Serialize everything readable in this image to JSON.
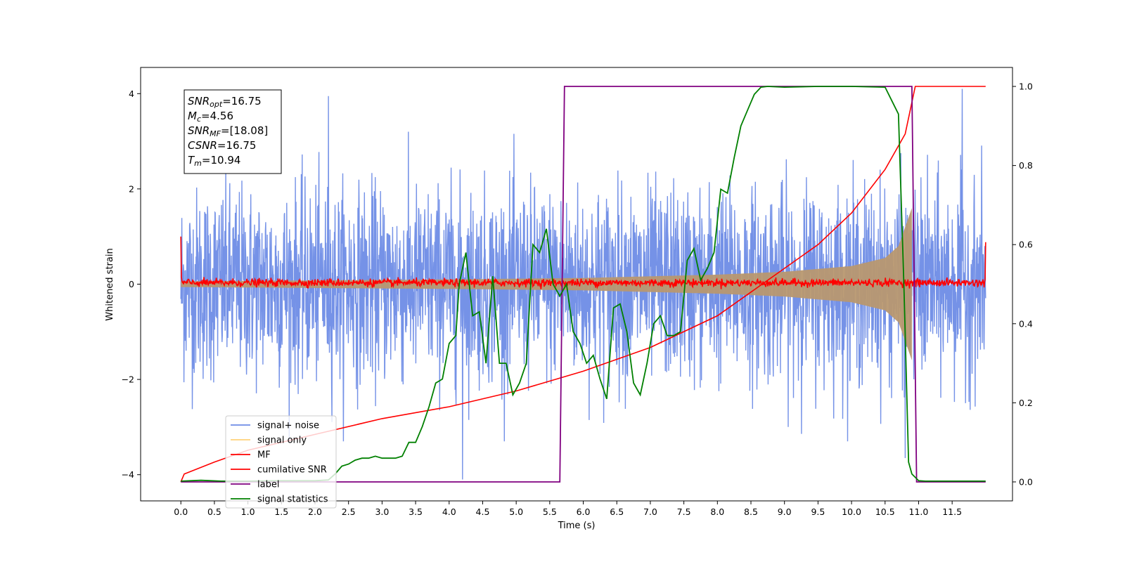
{
  "chart_data": {
    "type": "line",
    "xlabel": "Time (s)",
    "ylabel": "Whitened strain",
    "xlim": [
      -0.6,
      12.4
    ],
    "ylim": [
      -4.55,
      4.55
    ],
    "y2lim": [
      -0.048,
      1.048
    ],
    "x_ticks": [
      0.0,
      0.5,
      1.0,
      1.5,
      2.0,
      2.5,
      3.0,
      3.5,
      4.0,
      4.5,
      5.0,
      5.5,
      6.0,
      6.5,
      7.0,
      7.5,
      8.0,
      8.5,
      9.0,
      9.5,
      10.0,
      10.5,
      11.0,
      11.5
    ],
    "x_tick_labels": [
      "0.0",
      "0.5",
      "1.0",
      "1.5",
      "2.0",
      "2.5",
      "3.0",
      "3.5",
      "4.0",
      "4.5",
      "5.0",
      "5.5",
      "6.0",
      "6.5",
      "7.0",
      "7.5",
      "8.0",
      "8.5",
      "9.0",
      "9.5",
      "10.0",
      "10.5",
      "11.0",
      "11.5"
    ],
    "y_ticks": [
      -4,
      -2,
      0,
      2,
      4
    ],
    "y_tick_labels": [
      "−4",
      "−2",
      "0",
      "2",
      "4"
    ],
    "y2_ticks": [
      0.0,
      0.2,
      0.4,
      0.6,
      0.8,
      1.0
    ],
    "y2_tick_labels": [
      "0.0",
      "0.2",
      "0.4",
      "0.6",
      "0.8",
      "1.0"
    ],
    "grid": false,
    "legend_position": "lower-left",
    "legend": [
      {
        "label": "signal+ noise",
        "color": "#6e8ce6"
      },
      {
        "label": "signal only",
        "color": "#ffd27a"
      },
      {
        "label": "MF",
        "color": "#ff0000"
      },
      {
        "label": "cumilative SNR",
        "color": "#ff0000"
      },
      {
        "label": "label",
        "color": "#800080"
      },
      {
        "label": "signal statistics",
        "color": "#008000"
      }
    ],
    "annotation": {
      "lines": [
        {
          "sym": "SNR",
          "sub": "opt",
          "text": "=16.75"
        },
        {
          "sym": "M",
          "sub": "c",
          "text": "=4.56"
        },
        {
          "sym": "SNR",
          "sub": "MF",
          "text": "=[18.08]"
        },
        {
          "sym": "CSNR",
          "sub": "",
          "text": "=16.75"
        },
        {
          "sym": "T",
          "sub": "m",
          "text": "=10.94"
        }
      ]
    },
    "noise": {
      "duration": 12.0,
      "envelope_max": 1.95,
      "envelope_min": -2.1,
      "spikes": [
        [
          4.2,
          -4.1
        ],
        [
          2.2,
          3.95
        ],
        [
          11.65,
          4.1
        ],
        [
          10.8,
          -3.65
        ]
      ]
    },
    "signal_envelope": {
      "x": [
        0.0,
        2.0,
        4.0,
        6.0,
        8.0,
        9.0,
        10.0,
        10.5,
        10.7,
        10.8,
        10.9
      ],
      "amp": [
        0.06,
        0.08,
        0.1,
        0.13,
        0.2,
        0.26,
        0.38,
        0.55,
        0.8,
        1.2,
        1.6
      ]
    },
    "mf_level": 0.03,
    "cumulative_snr": {
      "x": [
        0.0,
        0.05,
        0.5,
        1.0,
        2.0,
        3.0,
        4.0,
        5.0,
        6.0,
        7.0,
        8.0,
        8.5,
        9.0,
        9.5,
        10.0,
        10.5,
        10.8,
        10.95,
        11.0,
        12.0
      ],
      "y2": [
        0.0,
        0.02,
        0.05,
        0.08,
        0.12,
        0.16,
        0.19,
        0.23,
        0.28,
        0.34,
        0.42,
        0.48,
        0.54,
        0.6,
        0.68,
        0.79,
        0.88,
        1.0,
        1.0,
        1.0
      ]
    },
    "label_series": {
      "x": [
        0.0,
        5.65,
        5.72,
        10.9,
        10.97,
        12.0
      ],
      "y2": [
        0.0,
        0.0,
        1.0,
        1.0,
        0.0,
        0.0
      ]
    },
    "signal_statistics": {
      "x": [
        0.0,
        0.3,
        0.6,
        1.0,
        1.5,
        2.0,
        2.2,
        2.3,
        2.4,
        2.5,
        2.6,
        2.7,
        2.8,
        2.9,
        3.0,
        3.1,
        3.2,
        3.3,
        3.4,
        3.5,
        3.6,
        3.7,
        3.8,
        3.9,
        4.0,
        4.1,
        4.15,
        4.25,
        4.35,
        4.45,
        4.55,
        4.65,
        4.75,
        4.85,
        4.95,
        5.05,
        5.15,
        5.25,
        5.35,
        5.45,
        5.55,
        5.65,
        5.75,
        5.85,
        5.95,
        6.05,
        6.15,
        6.25,
        6.35,
        6.45,
        6.55,
        6.65,
        6.75,
        6.85,
        6.95,
        7.05,
        7.15,
        7.25,
        7.35,
        7.45,
        7.55,
        7.65,
        7.75,
        7.85,
        7.95,
        8.05,
        8.15,
        8.25,
        8.35,
        8.45,
        8.55,
        8.65,
        8.75,
        9.0,
        9.5,
        10.0,
        10.5,
        10.7,
        10.78,
        10.85,
        10.9,
        11.0,
        11.1,
        12.0
      ],
      "y2": [
        0.002,
        0.004,
        0.002,
        0.002,
        0.003,
        0.003,
        0.005,
        0.02,
        0.04,
        0.045,
        0.055,
        0.06,
        0.06,
        0.065,
        0.06,
        0.06,
        0.06,
        0.065,
        0.1,
        0.1,
        0.14,
        0.19,
        0.25,
        0.26,
        0.35,
        0.37,
        0.5,
        0.58,
        0.42,
        0.43,
        0.3,
        0.52,
        0.3,
        0.3,
        0.22,
        0.25,
        0.3,
        0.6,
        0.58,
        0.64,
        0.5,
        0.47,
        0.5,
        0.38,
        0.35,
        0.3,
        0.32,
        0.26,
        0.21,
        0.44,
        0.45,
        0.38,
        0.25,
        0.22,
        0.3,
        0.4,
        0.42,
        0.37,
        0.37,
        0.38,
        0.56,
        0.59,
        0.51,
        0.54,
        0.58,
        0.74,
        0.73,
        0.82,
        0.9,
        0.94,
        0.98,
        0.998,
        1.0,
        0.998,
        1.0,
        1.0,
        0.998,
        0.93,
        0.5,
        0.05,
        0.02,
        0.003,
        0.002,
        0.002
      ]
    }
  }
}
